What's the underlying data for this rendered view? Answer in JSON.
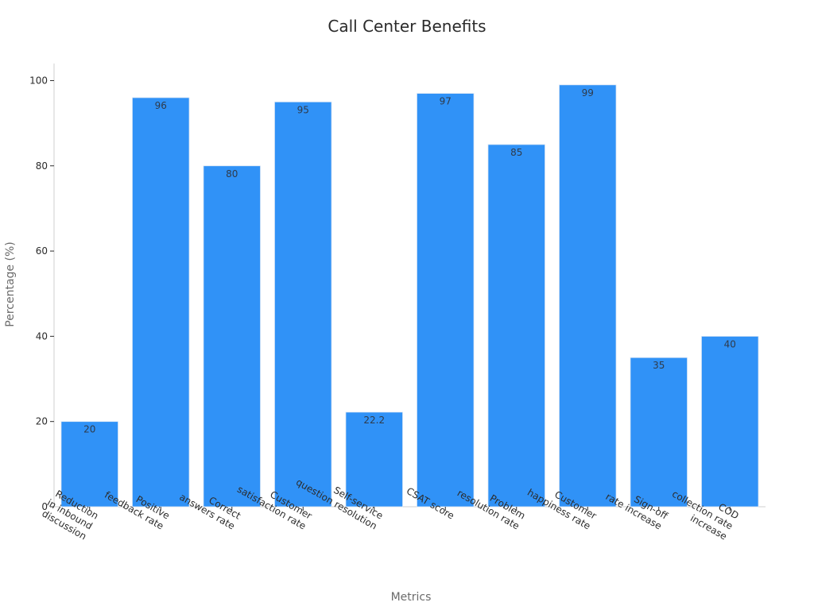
{
  "chart_data": {
    "type": "bar",
    "title": "Call Center Benefits",
    "xlabel": "Metrics",
    "ylabel": "Percentage (%)",
    "ylim": [
      0,
      104
    ],
    "yticks": [
      0,
      20,
      40,
      60,
      80,
      100
    ],
    "grid": false,
    "bar_color": "#3092f7",
    "categories": [
      [
        "Reduction",
        "in inbound",
        "discussion"
      ],
      [
        "Positive",
        "feedback rate"
      ],
      [
        "Correct",
        "answers rate"
      ],
      [
        "Customer",
        "satisfaction rate"
      ],
      [
        "Self-service",
        "question resolution"
      ],
      [
        "CSAT score"
      ],
      [
        "Problem",
        "resolution rate"
      ],
      [
        "Customer",
        "happiness rate"
      ],
      [
        "Sign-off",
        "rate increase"
      ],
      [
        "COD",
        "collection rate",
        "increase"
      ]
    ],
    "values": [
      20,
      96,
      80,
      95,
      22.2,
      97,
      85,
      99,
      35,
      40
    ],
    "data_labels": [
      "20",
      "96",
      "80",
      "95",
      "22.2",
      "97",
      "85",
      "99",
      "35",
      "40"
    ]
  }
}
